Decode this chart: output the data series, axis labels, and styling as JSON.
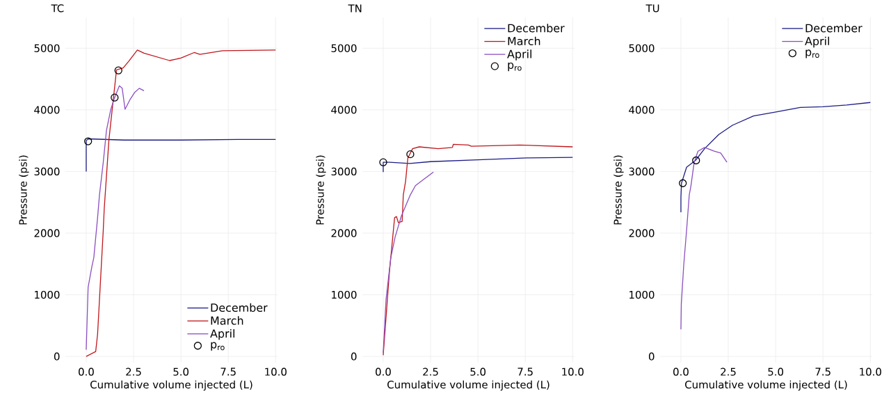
{
  "chart_data": [
    {
      "type": "line",
      "title": "TC",
      "xlabel": "Cumulative volume injected (L)",
      "ylabel": "Pressure (psi)",
      "xlim": [
        -1.1,
        10.1
      ],
      "ylim": [
        -100,
        5500
      ],
      "xticks": [
        {
          "value": 0,
          "label": "0.0"
        },
        {
          "value": 2.5,
          "label": "2.5"
        },
        {
          "value": 5,
          "label": "5.0"
        },
        {
          "value": 7.5,
          "label": "7.5"
        },
        {
          "value": 10,
          "label": "10.0"
        }
      ],
      "yticks": [
        0,
        1000,
        2000,
        3000,
        4000,
        5000
      ],
      "grid": true,
      "legend": "bottom right",
      "series": [
        {
          "name": "December",
          "color": "#1c1c85",
          "x": [
            0,
            0,
            0.1,
            2,
            5,
            8,
            10
          ],
          "values": [
            3000,
            3500,
            3530,
            3510,
            3510,
            3520,
            3520
          ]
        },
        {
          "name": "March",
          "color": "#c0161b",
          "x": [
            0,
            0.5,
            0.6,
            0.9,
            0.95,
            1.2,
            1.6,
            1.95,
            2.25,
            2.7,
            3.05,
            3.5,
            4.4,
            5,
            5.7,
            6,
            7.2,
            10
          ],
          "values": [
            0,
            80,
            360,
            2050,
            2390,
            3520,
            4650,
            4680,
            4790,
            4970,
            4920,
            4880,
            4800,
            4840,
            4930,
            4900,
            4960,
            4970
          ]
        },
        {
          "name": "April",
          "color": "#8b4fc0",
          "x": [
            0,
            0.1,
            0.3,
            0.4,
            0.6,
            0.7,
            0.9,
            1.07,
            1.3,
            1.5,
            1.75,
            1.9,
            2.05,
            2.3,
            2.55,
            2.8,
            3.05
          ],
          "values": [
            110,
            1120,
            1460,
            1600,
            2250,
            2620,
            3150,
            3670,
            4010,
            4200,
            4390,
            4350,
            4010,
            4160,
            4280,
            4350,
            4310
          ]
        },
        {
          "name": "p$_{ro}$",
          "type": "scatter",
          "marker": "circle",
          "color": "#000000",
          "x": [
            0.1,
            1.5,
            1.7
          ],
          "values": [
            3490,
            4200,
            4640
          ]
        }
      ]
    },
    {
      "type": "line",
      "title": "TN",
      "xlabel": "Cumulative volume injected (L)",
      "ylabel": "Pressure (psi)",
      "xlim": [
        -1.1,
        10.1
      ],
      "ylim": [
        -100,
        5500
      ],
      "xticks": [
        {
          "value": 0,
          "label": "0.0"
        },
        {
          "value": 2.5,
          "label": "2.5"
        },
        {
          "value": 5,
          "label": "5.0"
        },
        {
          "value": 7.5,
          "label": "7.5"
        },
        {
          "value": 10,
          "label": "10.0"
        }
      ],
      "yticks": [
        0,
        1000,
        2000,
        3000,
        4000,
        5000
      ],
      "grid": true,
      "legend": "top right",
      "series": [
        {
          "name": "December",
          "color": "#1c1c85",
          "x": [
            0,
            0,
            0.33,
            1.4,
            2.5,
            5,
            7.6,
            10
          ],
          "values": [
            2990,
            3150,
            3150,
            3130,
            3160,
            3190,
            3220,
            3230
          ]
        },
        {
          "name": "March",
          "color": "#c0161b",
          "x": [
            0,
            0.33,
            0.6,
            0.7,
            0.8,
            1.0,
            1.06,
            1.18,
            1.3,
            1.55,
            1.9,
            2.9,
            3.65,
            3.7,
            4.5,
            4.65,
            7.2,
            10
          ],
          "values": [
            20,
            1380,
            2250,
            2270,
            2170,
            2190,
            2620,
            2840,
            3220,
            3370,
            3400,
            3370,
            3390,
            3440,
            3430,
            3410,
            3430,
            3400
          ]
        },
        {
          "name": "April",
          "color": "#8b4fc0",
          "x": [
            0,
            0.15,
            0.4,
            0.63,
            0.96,
            1.43,
            1.7,
            2.17,
            2.65
          ],
          "values": [
            60,
            930,
            1600,
            1940,
            2280,
            2620,
            2770,
            2880,
            2990
          ]
        },
        {
          "name": "p$_{ro}$",
          "type": "scatter",
          "marker": "circle",
          "color": "#000000",
          "x": [
            0,
            1.43
          ],
          "values": [
            3150,
            3280
          ]
        }
      ]
    },
    {
      "type": "line",
      "title": "TU",
      "xlabel": "Cumulative volume injected (L)",
      "ylabel": "Pressure (psi)",
      "xlim": [
        -1.1,
        10.1
      ],
      "ylim": [
        -100,
        5500
      ],
      "xticks": [
        {
          "value": 0,
          "label": "0.0"
        },
        {
          "value": 2.5,
          "label": "2.5"
        },
        {
          "value": 5,
          "label": "5.0"
        },
        {
          "value": 7.5,
          "label": "7.5"
        },
        {
          "value": 10,
          "label": "10.0"
        }
      ],
      "yticks": [
        0,
        1000,
        2000,
        3000,
        4000,
        5000
      ],
      "grid": true,
      "legend": "top right",
      "series": [
        {
          "name": "December",
          "color": "#1c1c85",
          "x": [
            0,
            0,
            0.03,
            0.3,
            0.77,
            1.25,
            2,
            2.72,
            3.83,
            5.07,
            6.3,
            7.5,
            8.75,
            10
          ],
          "values": [
            2340,
            2580,
            2810,
            3070,
            3180,
            3370,
            3600,
            3750,
            3900,
            3970,
            4040,
            4050,
            4080,
            4120
          ]
        },
        {
          "name": "April",
          "color": "#8b4fc0",
          "x": [
            0,
            0.02,
            0.15,
            0.3,
            0.44,
            0.53,
            0.7,
            0.9,
            1.25,
            1.75,
            2.1,
            2.43
          ],
          "values": [
            440,
            850,
            1490,
            2050,
            2620,
            2770,
            3150,
            3330,
            3390,
            3330,
            3300,
            3150
          ]
        },
        {
          "name": "p$_{ro}$",
          "type": "scatter",
          "marker": "circle",
          "color": "#000000",
          "x": [
            0.1,
            0.8
          ],
          "values": [
            2810,
            3180
          ]
        }
      ]
    }
  ]
}
